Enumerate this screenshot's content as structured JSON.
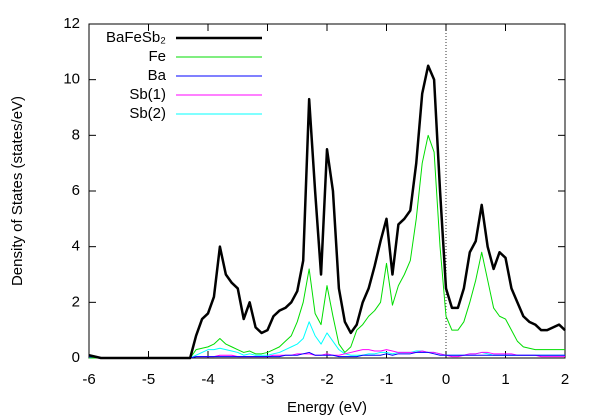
{
  "chart_data": {
    "type": "line",
    "xlabel": "Energy (eV)",
    "ylabel": "Density of States (states/eV)",
    "xlim": [
      -6,
      2
    ],
    "xticks": [
      -6,
      -5,
      -4,
      -3,
      -2,
      -1,
      0,
      1,
      2
    ],
    "ylim": [
      0,
      12
    ],
    "yticks": [
      0,
      2,
      4,
      6,
      8,
      10,
      12
    ],
    "vline": 0,
    "legend": "top-left",
    "x": [
      -6,
      -5.9,
      -5.8,
      -5.7,
      -5.6,
      -5.5,
      -5.4,
      -5.3,
      -5.2,
      -5.1,
      -5,
      -4.9,
      -4.8,
      -4.7,
      -4.6,
      -4.5,
      -4.4,
      -4.3,
      -4.2,
      -4.1,
      -4,
      -3.9,
      -3.8,
      -3.7,
      -3.6,
      -3.5,
      -3.4,
      -3.3,
      -3.2,
      -3.1,
      -3,
      -2.9,
      -2.8,
      -2.7,
      -2.6,
      -2.5,
      -2.4,
      -2.3,
      -2.2,
      -2.1,
      -2,
      -1.9,
      -1.8,
      -1.7,
      -1.6,
      -1.5,
      -1.4,
      -1.3,
      -1.2,
      -1.1,
      -1,
      -0.9,
      -0.8,
      -0.7,
      -0.6,
      -0.5,
      -0.4,
      -0.3,
      -0.2,
      -0.1,
      0,
      0.1,
      0.2,
      0.3,
      0.4,
      0.5,
      0.6,
      0.7,
      0.8,
      0.9,
      1,
      1.1,
      1.2,
      1.3,
      1.4,
      1.5,
      1.6,
      1.7,
      1.8,
      1.9,
      2
    ],
    "series": [
      {
        "name": "BaFeSb₂",
        "color": "#000000",
        "width": 2.5,
        "values": [
          0.1,
          0.05,
          0,
          0,
          0,
          0,
          0,
          0,
          0,
          0,
          0,
          0,
          0,
          0,
          0,
          0,
          0,
          0,
          0.8,
          1.4,
          1.6,
          2.2,
          4.0,
          3.0,
          2.7,
          2.5,
          1.4,
          2.0,
          1.1,
          0.9,
          1.0,
          1.5,
          1.7,
          1.8,
          2.0,
          2.4,
          3.5,
          9.3,
          6.0,
          3.0,
          7.5,
          6.0,
          2.5,
          1.3,
          0.9,
          1.2,
          2.0,
          2.5,
          3.3,
          4.2,
          5.0,
          3.0,
          4.8,
          5.0,
          5.3,
          7.0,
          9.5,
          10.5,
          10.0,
          6.0,
          2.5,
          1.8,
          1.8,
          2.5,
          3.8,
          4.2,
          5.5,
          4.0,
          3.2,
          3.8,
          3.6,
          2.5,
          2.0,
          1.5,
          1.3,
          1.2,
          1.0,
          1.0,
          1.1,
          1.2,
          1.0
        ]
      },
      {
        "name": "Fe",
        "color": "#00dd00",
        "width": 1,
        "values": [
          0,
          0,
          0,
          0,
          0,
          0,
          0,
          0,
          0,
          0,
          0,
          0,
          0,
          0,
          0,
          0,
          0,
          0,
          0.3,
          0.35,
          0.4,
          0.5,
          0.7,
          0.5,
          0.4,
          0.3,
          0.2,
          0.25,
          0.15,
          0.15,
          0.2,
          0.3,
          0.4,
          0.6,
          0.8,
          1.3,
          2.0,
          3.2,
          1.6,
          1.2,
          2.6,
          1.5,
          0.5,
          0.2,
          0.4,
          1.0,
          1.2,
          1.5,
          1.7,
          2.0,
          3.4,
          1.9,
          2.6,
          3.0,
          3.5,
          5.0,
          7.0,
          8.0,
          7.4,
          4.0,
          1.5,
          1.0,
          1.0,
          1.3,
          2.0,
          2.8,
          3.8,
          2.8,
          1.8,
          1.5,
          1.4,
          1.0,
          0.6,
          0.4,
          0.35,
          0.3,
          0.3,
          0.3,
          0.3,
          0.3,
          0.3
        ]
      },
      {
        "name": "Ba",
        "color": "#0000ff",
        "width": 1,
        "values": [
          0.05,
          0,
          0,
          0,
          0,
          0,
          0,
          0,
          0,
          0,
          0,
          0,
          0,
          0,
          0,
          0,
          0,
          0,
          0.05,
          0.05,
          0.05,
          0.05,
          0.05,
          0.05,
          0.05,
          0.05,
          0.05,
          0.05,
          0.05,
          0.05,
          0.05,
          0.05,
          0.05,
          0.1,
          0.1,
          0.1,
          0.15,
          0.2,
          0.1,
          0.1,
          0.1,
          0.1,
          0.05,
          0.05,
          0.05,
          0.05,
          0.1,
          0.1,
          0.1,
          0.1,
          0.15,
          0.1,
          0.15,
          0.15,
          0.15,
          0.2,
          0.2,
          0.2,
          0.15,
          0.1,
          0.1,
          0.1,
          0.1,
          0.1,
          0.1,
          0.1,
          0.1,
          0.1,
          0.1,
          0.1,
          0.1,
          0.1,
          0.1,
          0.1,
          0.1,
          0.1,
          0.1,
          0.1,
          0.1,
          0.1,
          0.1
        ]
      },
      {
        "name": "Sb(1)",
        "color": "#ff00ff",
        "width": 1,
        "values": [
          0,
          0,
          0,
          0,
          0,
          0,
          0,
          0,
          0,
          0,
          0,
          0,
          0,
          0,
          0,
          0,
          0,
          0,
          0.05,
          0.05,
          0.05,
          0.05,
          0.1,
          0.1,
          0.1,
          0.05,
          0.05,
          0.05,
          0.05,
          0.05,
          0.05,
          0.1,
          0.1,
          0.1,
          0.1,
          0.15,
          0.15,
          0.15,
          0.1,
          0.1,
          0.15,
          0.1,
          0.1,
          0.15,
          0.2,
          0.25,
          0.3,
          0.3,
          0.25,
          0.25,
          0.3,
          0.25,
          0.2,
          0.2,
          0.2,
          0.2,
          0.25,
          0.2,
          0.2,
          0.15,
          0.1,
          0.05,
          0.05,
          0.1,
          0.15,
          0.15,
          0.2,
          0.2,
          0.15,
          0.15,
          0.15,
          0.15,
          0.1,
          0.1,
          0.1,
          0.1,
          0.05,
          0.05,
          0.05,
          0.05,
          0.05
        ]
      },
      {
        "name": "Sb(2)",
        "color": "#00ffff",
        "width": 1,
        "values": [
          0,
          0,
          0,
          0,
          0,
          0,
          0,
          0,
          0,
          0,
          0,
          0,
          0,
          0,
          0,
          0,
          0,
          0,
          0.1,
          0.2,
          0.3,
          0.3,
          0.35,
          0.3,
          0.25,
          0.2,
          0.1,
          0.15,
          0.1,
          0.1,
          0.1,
          0.15,
          0.2,
          0.3,
          0.4,
          0.5,
          0.7,
          1.3,
          0.8,
          0.5,
          0.9,
          0.6,
          0.3,
          0.15,
          0.1,
          0.1,
          0.1,
          0.15,
          0.15,
          0.2,
          0.2,
          0.15,
          0.2,
          0.2,
          0.2,
          0.25,
          0.25,
          0.2,
          0.2,
          0.15,
          0.1,
          0.1,
          0.1,
          0.1,
          0.15,
          0.15,
          0.2,
          0.15,
          0.1,
          0.1,
          0.1,
          0.1,
          0.1,
          0.1,
          0.1,
          0.1,
          0.1,
          0.1,
          0.1,
          0.1,
          0.1
        ]
      }
    ]
  }
}
